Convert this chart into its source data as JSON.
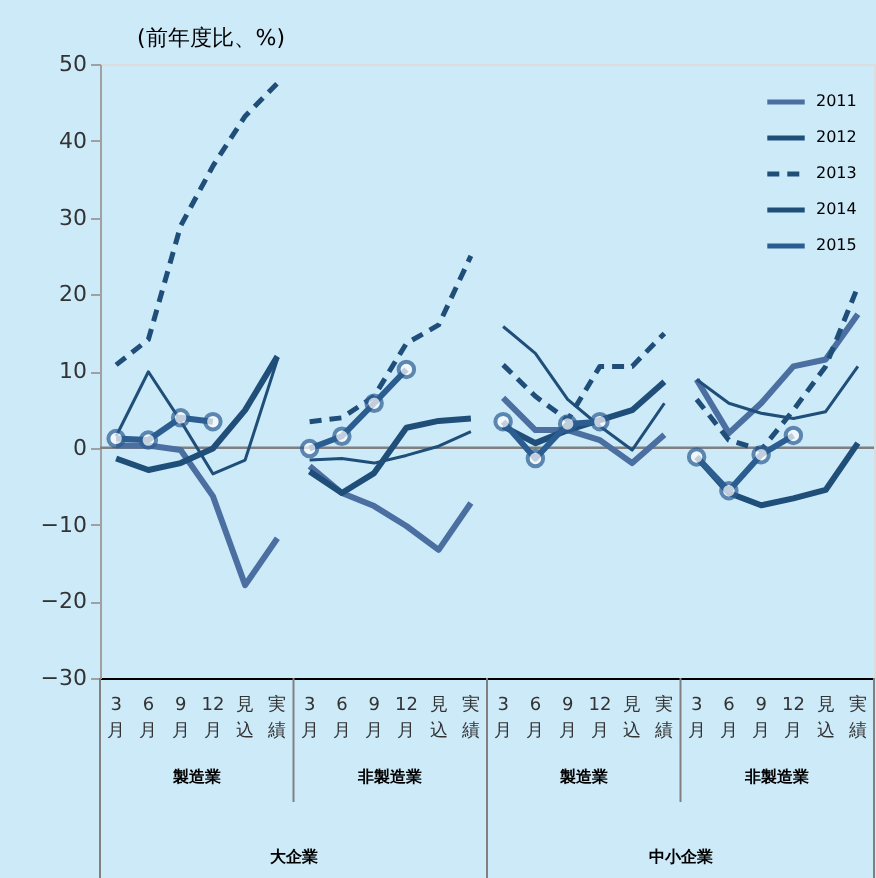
{
  "chart_data": {
    "type": "line",
    "ylabel": "(前年度比、%)",
    "categories": [
      "3月",
      "6月",
      "9月",
      "12月",
      "見込",
      "実績",
      "3月",
      "6月",
      "9月",
      "12月",
      "見込",
      "実績",
      "3月",
      "6月",
      "9月",
      "12月",
      "見込",
      "実績",
      "3月",
      "6月",
      "9月",
      "12月",
      "見込",
      "実績"
    ],
    "series": [
      {
        "name": "2011",
        "color": "#4a6fa0",
        "line_style": "solid",
        "values": [
          0.3,
          0.3,
          -0.3,
          -6.3,
          -17.9,
          -11.8,
          -2.4,
          -5.9,
          -7.6,
          -10.2,
          -13.3,
          -7.2,
          6.5,
          2.3,
          2.3,
          1.0,
          -2.0,
          1.7,
          8.9,
          1.9,
          5.8,
          10.6,
          11.5,
          17.4
        ]
      },
      {
        "name": "2012",
        "color": "#1f4e79",
        "line_style": "solid",
        "values": [
          1.5,
          9.9,
          3.5,
          -3.4,
          -1.6,
          11.5,
          -1.6,
          -1.4,
          -2.0,
          -1.0,
          0.2,
          2.1,
          15.8,
          12.3,
          6.3,
          2.8,
          -0.3,
          5.8,
          8.9,
          5.8,
          4.5,
          3.8,
          4.7,
          10.6
        ]
      },
      {
        "name": "2013",
        "color": "#1f4e79",
        "line_style": "dashed",
        "values": [
          10.8,
          14.1,
          28.9,
          36.7,
          43.2,
          47.5,
          3.4,
          3.9,
          6.7,
          13.6,
          16.0,
          25.0,
          10.8,
          6.7,
          3.6,
          10.6,
          10.6,
          14.9,
          6.3,
          1.0,
          -0.3,
          4.9,
          10.6,
          21.0
        ]
      },
      {
        "name": "2014",
        "color": "#1f4e79",
        "line_style": "solid",
        "values": [
          -1.4,
          -2.9,
          -2.0,
          -0.1,
          4.9,
          11.9,
          -3.1,
          -5.9,
          -3.3,
          2.6,
          3.5,
          3.8,
          2.8,
          0.6,
          2.3,
          3.6,
          4.9,
          8.6,
          -1.2,
          -5.9,
          -7.5,
          -6.6,
          -5.5,
          0.6
        ]
      },
      {
        "name": "2015",
        "color": "#2b5d91",
        "line_style": "solid",
        "marker": "circle",
        "values": [
          1.2,
          1.0,
          3.9,
          3.4,
          null,
          null,
          -0.1,
          1.5,
          5.8,
          10.2,
          null,
          null,
          3.4,
          -1.4,
          3.1,
          3.4,
          null,
          null,
          -1.2,
          -5.6,
          -0.9,
          1.6,
          null,
          null
        ]
      }
    ],
    "ylim": [
      -30,
      50
    ],
    "yticks": [
      -30,
      -20,
      -10,
      0,
      10,
      20,
      30,
      40,
      50
    ],
    "ref_lines": [
      {
        "axis": "y",
        "value": 0,
        "color": "#808080"
      }
    ],
    "annotations": [
      "製造業",
      "非製造業",
      "製造業",
      "非製造業",
      "大企業",
      "中小企業"
    ],
    "grid": false,
    "legend": "top right"
  }
}
